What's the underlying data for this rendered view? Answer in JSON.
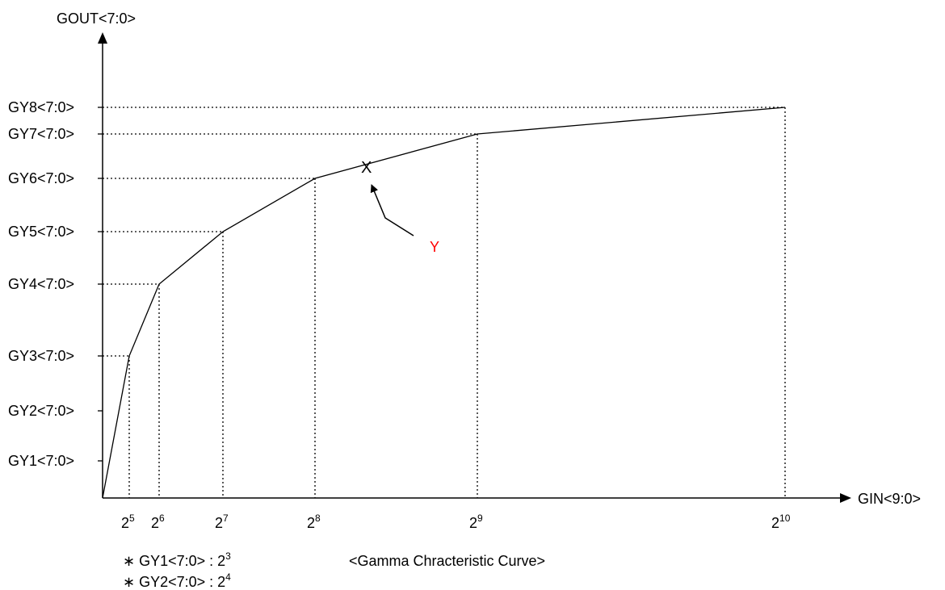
{
  "chart_data": {
    "type": "line",
    "title": "<Gamma Chracteristic Curve>",
    "xlabel": "GIN<9:0>",
    "ylabel": "GOUT<7:0>",
    "y_levels": [
      "GY1<7:0>",
      "GY2<7:0>",
      "GY3<7:0>",
      "GY4<7:0>",
      "GY5<7:0>",
      "GY6<7:0>",
      "GY7<7:0>",
      "GY8<7:0>"
    ],
    "x_ticks": [
      {
        "base": "2",
        "exp": "5",
        "value": 32
      },
      {
        "base": "2",
        "exp": "6",
        "value": 64
      },
      {
        "base": "2",
        "exp": "7",
        "value": 128
      },
      {
        "base": "2",
        "exp": "8",
        "value": 256
      },
      {
        "base": "2",
        "exp": "9",
        "value": 512
      },
      {
        "base": "2",
        "exp": "10",
        "value": 1024
      }
    ],
    "curve_points": [
      {
        "x": 0,
        "y": null
      },
      {
        "x": 32,
        "y": "GY3<7:0>"
      },
      {
        "x": 64,
        "y": "GY4<7:0>"
      },
      {
        "x": 128,
        "y": "GY5<7:0>"
      },
      {
        "x": 256,
        "y": "GY6<7:0>"
      },
      {
        "x": 512,
        "y": "GY7<7:0>"
      },
      {
        "x": 1024,
        "y": "GY8<7:0>"
      }
    ],
    "marker_label": "X",
    "pointer_label": "Y",
    "pointer_color": "#ff0000",
    "line_color": "#000000",
    "notes": [
      {
        "bullet": "∗",
        "label": "GY1<7:0> : 2",
        "exp": "3"
      },
      {
        "bullet": "∗",
        "label": "GY2<7:0> : 2",
        "exp": "4"
      }
    ]
  }
}
